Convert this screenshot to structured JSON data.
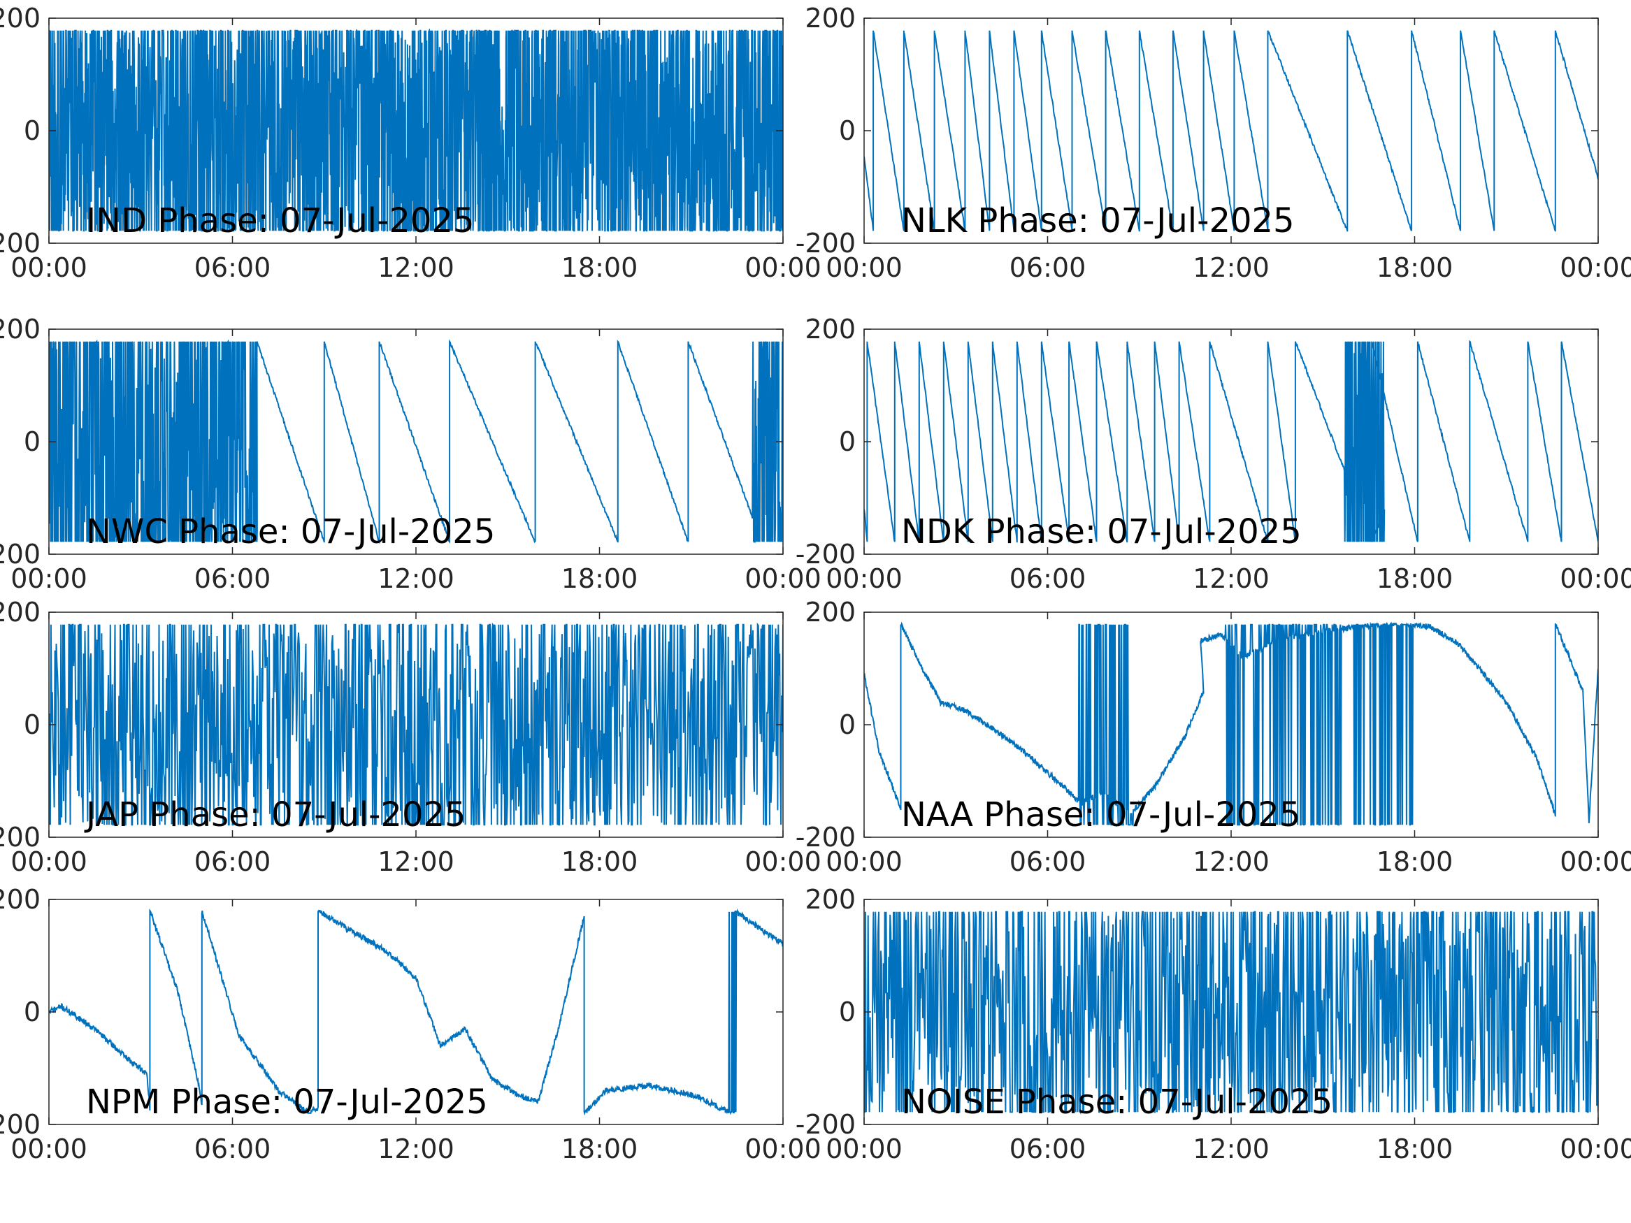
{
  "figure": {
    "background": "#ffffff",
    "line_color": "#0072bd",
    "axis_color": "#262626"
  },
  "chart_data": [
    {
      "type": "line",
      "label": "IND Phase: 07-Jul-2025",
      "pattern": "noise",
      "density": "dense",
      "seed": 11,
      "xlim": [
        0,
        24
      ],
      "ylim": [
        -200,
        200
      ],
      "yticks": [
        "-200",
        "0",
        "200"
      ],
      "xticks": [
        "00:00",
        "06:00",
        "12:00",
        "18:00",
        "00:00"
      ],
      "grid": false
    },
    {
      "type": "line",
      "label": "NLK Phase: 07-Jul-2025",
      "pattern": "saw",
      "wraps": [
        0.3,
        1.3,
        2.3,
        3.3,
        4.1,
        4.9,
        5.8,
        6.8,
        7.9,
        9.0,
        10.1,
        11.1,
        12.1,
        13.2,
        15.8,
        17.9,
        19.5,
        20.6,
        22.6
      ],
      "drift": -0.8,
      "seed": 21,
      "xlim": [
        0,
        24
      ],
      "ylim": [
        -200,
        200
      ],
      "yticks": [
        "-200",
        "0",
        "200"
      ],
      "xticks": [
        "00:00",
        "06:00",
        "12:00",
        "18:00",
        "00:00"
      ],
      "grid": false
    },
    {
      "type": "line",
      "label": "NWC Phase: 07-Jul-2025",
      "pattern": "saw",
      "wraps": [
        6.8,
        9.0,
        10.8,
        13.1,
        15.9,
        18.6,
        20.9,
        23.3
      ],
      "drift": -0.9,
      "noisy_spans": [
        [
          0,
          6.8
        ],
        [
          23.0,
          24
        ]
      ],
      "seed": 31,
      "xlim": [
        0,
        24
      ],
      "ylim": [
        -200,
        200
      ],
      "yticks": [
        "-200",
        "0",
        "200"
      ],
      "xticks": [
        "00:00",
        "06:00",
        "12:00",
        "18:00",
        "00:00"
      ],
      "grid": false
    },
    {
      "type": "line",
      "label": "NDK Phase: 07-Jul-2025",
      "pattern": "saw",
      "wraps": [
        0.1,
        1.0,
        1.8,
        2.6,
        3.4,
        4.2,
        5.0,
        5.8,
        6.7,
        7.6,
        8.6,
        9.5,
        10.3,
        11.3,
        13.2,
        14.1,
        16.6,
        18.1,
        19.8,
        21.7,
        22.8,
        24.0
      ],
      "drift": -1.0,
      "noisy_spans": [
        [
          15.7,
          17.0
        ]
      ],
      "seed": 41,
      "xlim": [
        0,
        24
      ],
      "ylim": [
        -200,
        200
      ],
      "yticks": [
        "-200",
        "0",
        "200"
      ],
      "xticks": [
        "00:00",
        "06:00",
        "12:00",
        "18:00",
        "00:00"
      ],
      "grid": false
    },
    {
      "type": "line",
      "label": "JAP Phase: 07-Jul-2025",
      "pattern": "noise",
      "density": "medium",
      "seed": 51,
      "xlim": [
        0,
        24
      ],
      "ylim": [
        -200,
        200
      ],
      "yticks": [
        "-200",
        "0",
        "200"
      ],
      "xticks": [
        "00:00",
        "06:00",
        "12:00",
        "18:00",
        "00:00"
      ],
      "grid": false
    },
    {
      "type": "line",
      "label": "NAA Phase: 07-Jul-2025",
      "pattern": "waypoints",
      "seed": 61,
      "points": [
        [
          0,
          90
        ],
        [
          0.5,
          -50
        ],
        [
          1.2,
          -150
        ],
        [
          1.2,
          180
        ],
        [
          1.8,
          110
        ],
        [
          2.5,
          40
        ],
        [
          3.3,
          25
        ],
        [
          4.3,
          -10
        ],
        [
          5.5,
          -60
        ],
        [
          6.5,
          -110
        ],
        [
          7.1,
          -140
        ],
        [
          7.8,
          -120
        ],
        [
          8.7,
          -160
        ],
        [
          9.5,
          -110
        ],
        [
          10.5,
          -20
        ],
        [
          11.1,
          60
        ],
        [
          11.0,
          150
        ],
        [
          11.7,
          160
        ],
        [
          12.4,
          120
        ],
        [
          13.5,
          150
        ],
        [
          15.5,
          170
        ],
        [
          17,
          180
        ],
        [
          18.5,
          175
        ],
        [
          19.5,
          140
        ],
        [
          21,
          40
        ],
        [
          22,
          -60
        ],
        [
          22.6,
          -160
        ],
        [
          22.6,
          180
        ],
        [
          23.5,
          60
        ],
        [
          23.7,
          -170
        ],
        [
          24,
          100
        ]
      ],
      "noisy_spans": [
        [
          7.0,
          8.8
        ],
        [
          11.8,
          15.6
        ],
        [
          16.0,
          18.0
        ]
      ],
      "xlim": [
        0,
        24
      ],
      "ylim": [
        -200,
        200
      ],
      "yticks": [
        "-200",
        "0",
        "200"
      ],
      "xticks": [
        "00:00",
        "06:00",
        "12:00",
        "18:00",
        "00:00"
      ],
      "grid": false
    },
    {
      "type": "line",
      "label": "NPM Phase: 07-Jul-2025",
      "pattern": "waypoints",
      "seed": 71,
      "points": [
        [
          0,
          0
        ],
        [
          0.4,
          10
        ],
        [
          1.5,
          -30
        ],
        [
          2.5,
          -80
        ],
        [
          3.2,
          -110
        ],
        [
          3.3,
          -170
        ],
        [
          3.3,
          180
        ],
        [
          4.2,
          40
        ],
        [
          4.9,
          -130
        ],
        [
          5.0,
          -170
        ],
        [
          5.0,
          180
        ],
        [
          6.2,
          -40
        ],
        [
          7.5,
          -140
        ],
        [
          8.5,
          -180
        ],
        [
          8.8,
          -170
        ],
        [
          8.8,
          180
        ],
        [
          10,
          140
        ],
        [
          11,
          110
        ],
        [
          12,
          60
        ],
        [
          12.8,
          -60
        ],
        [
          13.6,
          -30
        ],
        [
          14.5,
          -120
        ],
        [
          15.4,
          -150
        ],
        [
          16,
          -160
        ],
        [
          16.7,
          -20
        ],
        [
          17.2,
          100
        ],
        [
          17.5,
          170
        ],
        [
          17.5,
          -180
        ],
        [
          18.2,
          -140
        ],
        [
          19.6,
          -130
        ],
        [
          21.2,
          -150
        ],
        [
          22.3,
          -180
        ],
        [
          22.4,
          -180
        ],
        [
          22.4,
          180
        ],
        [
          23.2,
          150
        ],
        [
          24,
          120
        ]
      ],
      "noisy_spans": [
        [
          22.2,
          22.5
        ]
      ],
      "xlim": [
        0,
        24
      ],
      "ylim": [
        -200,
        200
      ],
      "yticks": [
        "-200",
        "0",
        "200"
      ],
      "xticks": [
        "00:00",
        "06:00",
        "12:00",
        "18:00",
        "00:00"
      ],
      "grid": false
    },
    {
      "type": "line",
      "label": "NOISE Phase: 07-Jul-2025",
      "pattern": "noise",
      "density": "medium",
      "seed": 81,
      "xlim": [
        0,
        24
      ],
      "ylim": [
        -200,
        200
      ],
      "yticks": [
        "-200",
        "0",
        "200"
      ],
      "xticks": [
        "00:00",
        "06:00",
        "12:00",
        "18:00",
        "00:00"
      ],
      "grid": false
    }
  ]
}
